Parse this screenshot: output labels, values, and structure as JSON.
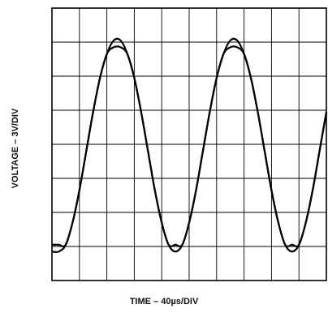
{
  "chart_data": {
    "type": "line",
    "xlabel": "TIME – 40µs/DIV",
    "ylabel": "VOLTAGE – 3V/DIV",
    "grid": true,
    "x_divisions": 10,
    "y_divisions": 8,
    "xlim": [
      0,
      10
    ],
    "ylim": [
      0,
      8
    ],
    "series": [
      {
        "role": "sine-input",
        "x": [
          0,
          0.25,
          0.5,
          0.75,
          1.0,
          1.25,
          1.5,
          1.75,
          2.0,
          2.25,
          2.5,
          2.75,
          3.0,
          3.25,
          3.5,
          3.75,
          4.0,
          4.25,
          4.5,
          4.75,
          5.0,
          5.25,
          5.5,
          5.75,
          6.0,
          6.25,
          6.5,
          6.75,
          7.0,
          7.25,
          7.5,
          7.75,
          8.0,
          8.25,
          8.5,
          8.75,
          9.0,
          9.25,
          9.5,
          9.75,
          10.0
        ],
        "y": [
          0.85,
          0.85,
          1.05,
          1.7,
          2.65,
          3.8,
          4.95,
          5.95,
          6.65,
          7.05,
          7.05,
          6.65,
          5.95,
          4.95,
          3.8,
          2.65,
          1.7,
          1.05,
          0.85,
          1.05,
          1.7,
          2.65,
          3.8,
          4.95,
          5.95,
          6.65,
          7.05,
          7.05,
          6.65,
          5.95,
          4.95,
          3.8,
          2.65,
          1.7,
          1.05,
          0.85,
          1.05,
          1.7,
          2.65,
          3.8,
          4.95
        ]
      },
      {
        "role": "clipped-output",
        "x": [
          0,
          0.25,
          0.5,
          0.75,
          1.0,
          1.25,
          1.5,
          1.75,
          2.0,
          2.25,
          2.5,
          2.75,
          3.0,
          3.25,
          3.5,
          3.75,
          4.0,
          4.25,
          4.5,
          4.75,
          5.0,
          5.25,
          5.5,
          5.75,
          6.0,
          6.25,
          6.5,
          6.75,
          7.0,
          7.25,
          7.5,
          7.75,
          8.0,
          8.25,
          8.5,
          8.75,
          9.0,
          9.25,
          9.5,
          9.75,
          10.0
        ],
        "y": [
          1.05,
          1.05,
          1.05,
          1.7,
          2.65,
          3.8,
          4.95,
          5.95,
          6.65,
          6.85,
          6.85,
          6.65,
          5.95,
          4.95,
          3.8,
          2.65,
          1.7,
          1.05,
          1.05,
          1.05,
          1.7,
          2.65,
          3.8,
          4.95,
          5.95,
          6.65,
          6.85,
          6.85,
          6.65,
          5.95,
          4.95,
          3.8,
          2.65,
          1.7,
          1.05,
          1.05,
          1.05,
          1.7,
          2.65,
          3.8,
          4.95
        ]
      }
    ]
  }
}
